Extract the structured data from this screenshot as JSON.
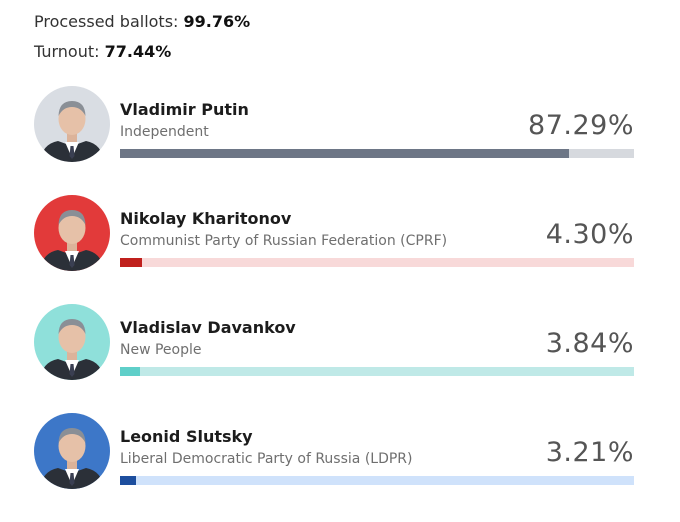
{
  "stats": {
    "processed_label": "Processed ballots:",
    "processed_value": "99.76%",
    "turnout_label": "Turnout:",
    "turnout_value": "77.44%"
  },
  "candidates": [
    {
      "name": "Vladimir Putin",
      "party": "Independent",
      "percent": "87.29%",
      "share": 0.8729,
      "bar_color": "#6d7686",
      "track_color": "#d6d9de",
      "avatar_bg": "#d9dde3",
      "avatar_icon": "portrait-photo"
    },
    {
      "name": "Nikolay Kharitonov",
      "party": "Communist Party of Russian Federation (CPRF)",
      "percent": "4.30%",
      "share": 0.043,
      "bar_color": "#c0201d",
      "track_color": "#f8d9d9",
      "avatar_bg": "#e23a3a",
      "avatar_icon": "portrait-photo"
    },
    {
      "name": "Vladislav Davankov",
      "party": "New People",
      "percent": "3.84%",
      "share": 0.0384,
      "bar_color": "#5fcfc9",
      "track_color": "#bfe9e7",
      "avatar_bg": "#8fe0da",
      "avatar_icon": "portrait-photo"
    },
    {
      "name": "Leonid Slutsky",
      "party": "Liberal Democratic Party of Russia (LDPR)",
      "percent": "3.21%",
      "share": 0.0321,
      "bar_color": "#1d4e9e",
      "track_color": "#cfe2fb",
      "avatar_bg": "#3d77c8",
      "avatar_icon": "portrait-photo"
    }
  ]
}
